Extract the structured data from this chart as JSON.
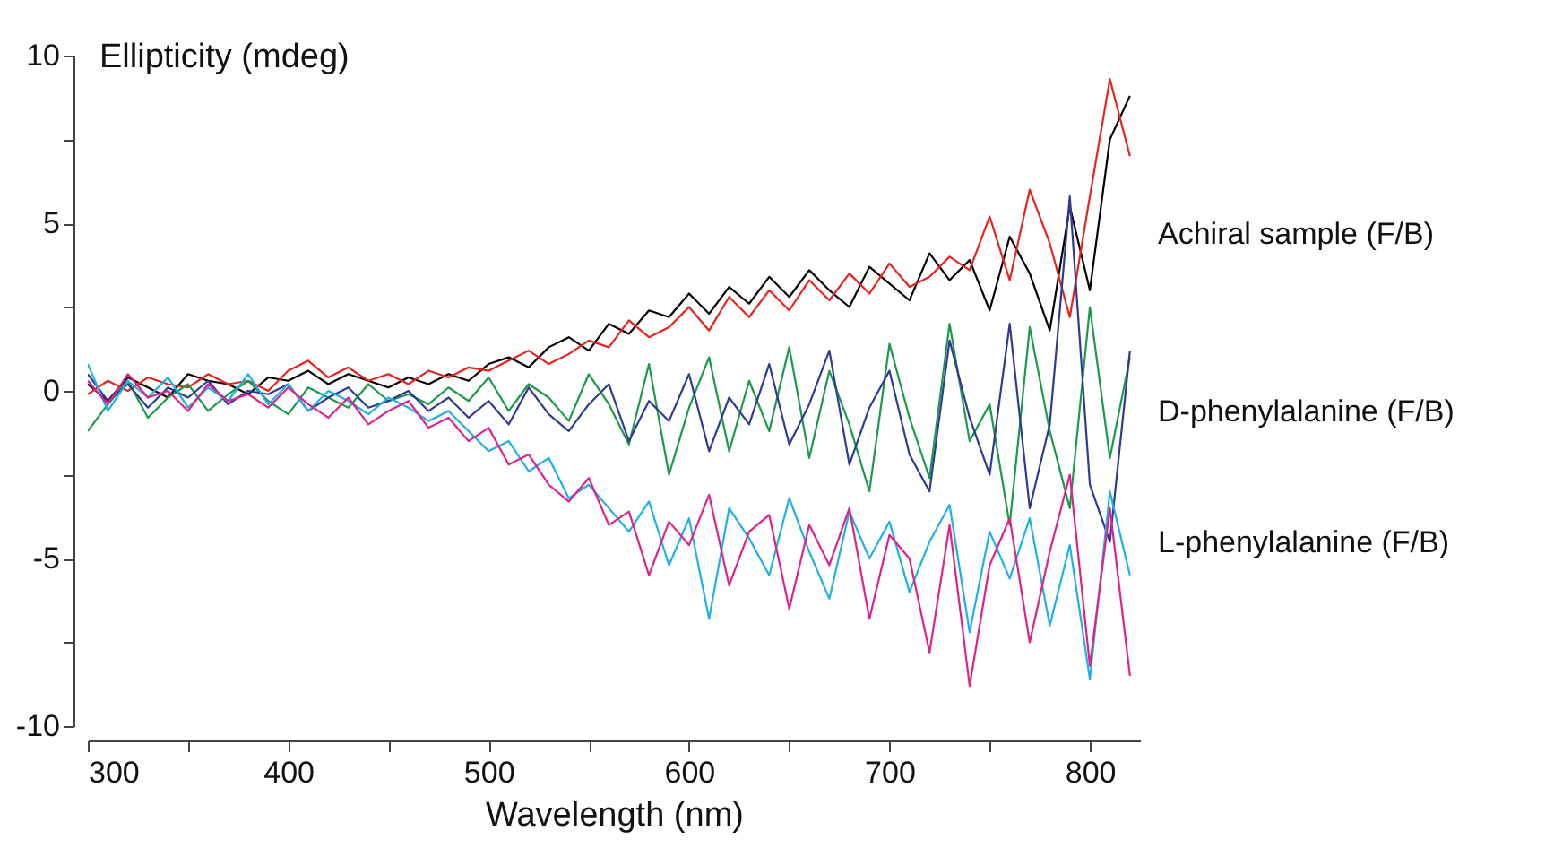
{
  "chart_data": {
    "type": "line",
    "xlabel": "Wavelength (nm)",
    "ylabel": "Ellipticity (mdeg)",
    "x": [
      300,
      310,
      320,
      330,
      340,
      350,
      360,
      370,
      380,
      390,
      400,
      410,
      420,
      430,
      440,
      450,
      460,
      470,
      480,
      490,
      500,
      510,
      520,
      530,
      540,
      550,
      560,
      570,
      580,
      590,
      600,
      610,
      620,
      630,
      640,
      650,
      660,
      670,
      680,
      690,
      700,
      710,
      720,
      730,
      740,
      750,
      760,
      770,
      780,
      790,
      800,
      810,
      820
    ],
    "series": [
      {
        "color": "#000000",
        "values": [
          0.2,
          -0.3,
          0.4,
          0.1,
          -0.2,
          0.5,
          0.3,
          0.2,
          -0.1,
          0.4,
          0.3,
          0.6,
          0.2,
          0.5,
          0.3,
          0.1,
          0.4,
          0.2,
          0.5,
          0.3,
          0.8,
          1.0,
          0.7,
          1.3,
          1.6,
          1.2,
          2.0,
          1.7,
          2.4,
          2.2,
          2.9,
          2.3,
          3.1,
          2.6,
          3.4,
          2.8,
          3.6,
          3.0,
          2.5,
          3.7,
          3.2,
          2.7,
          4.1,
          3.3,
          3.9,
          2.4,
          4.6,
          3.5,
          1.8,
          5.5,
          3.0,
          7.5,
          8.8
        ]
      },
      {
        "color": "#e8231e",
        "values": [
          -0.1,
          0.3,
          0.0,
          0.4,
          0.2,
          0.1,
          0.5,
          0.2,
          0.3,
          0.0,
          0.6,
          0.9,
          0.4,
          0.7,
          0.3,
          0.5,
          0.2,
          0.6,
          0.4,
          0.7,
          0.6,
          0.9,
          1.2,
          0.8,
          1.1,
          1.5,
          1.3,
          2.1,
          1.6,
          1.9,
          2.5,
          1.8,
          2.8,
          2.2,
          3.0,
          2.4,
          3.3,
          2.7,
          3.5,
          2.9,
          3.8,
          3.1,
          3.4,
          4.0,
          3.6,
          5.2,
          3.3,
          6.0,
          4.4,
          2.2,
          5.8,
          9.3,
          7.0
        ]
      },
      {
        "color": "#1a9a4a",
        "values": [
          -1.2,
          -0.4,
          0.3,
          -0.8,
          -0.2,
          0.2,
          -0.6,
          -0.1,
          0.3,
          -0.3,
          -0.7,
          0.1,
          -0.2,
          -0.5,
          0.2,
          -0.3,
          -0.1,
          -0.4,
          0.1,
          -0.3,
          0.4,
          -0.6,
          0.2,
          -0.2,
          -0.9,
          0.5,
          -0.4,
          -1.6,
          0.8,
          -2.5,
          -0.5,
          1.0,
          -1.8,
          0.3,
          -1.2,
          1.3,
          -2.0,
          0.6,
          -1.0,
          -3.0,
          1.4,
          -0.8,
          -2.6,
          2.0,
          -1.5,
          -0.4,
          -4.0,
          1.9,
          -1.2,
          -3.5,
          2.5,
          -2.0,
          1.0
        ]
      },
      {
        "color": "#2e3a94",
        "values": [
          0.5,
          -0.3,
          0.2,
          -0.5,
          0.1,
          -0.2,
          0.3,
          -0.4,
          0.0,
          -0.1,
          0.2,
          -0.6,
          -0.2,
          0.1,
          -0.5,
          -0.3,
          0.0,
          -0.6,
          -0.2,
          -0.8,
          -0.3,
          -1.0,
          0.1,
          -0.7,
          -1.2,
          -0.4,
          0.2,
          -1.5,
          -0.3,
          -0.9,
          0.5,
          -1.8,
          -0.2,
          -1.0,
          0.8,
          -1.6,
          -0.4,
          1.2,
          -2.2,
          -0.5,
          0.6,
          -1.9,
          -3.0,
          1.5,
          -0.8,
          -2.5,
          2.0,
          -3.5,
          -1.0,
          5.8,
          -2.8,
          -4.5,
          1.2
        ]
      },
      {
        "color": "#1fb0e6",
        "values": [
          0.8,
          -0.6,
          0.3,
          -0.2,
          0.4,
          -0.5,
          0.1,
          -0.3,
          0.5,
          -0.4,
          0.2,
          -0.6,
          0.0,
          -0.3,
          -0.7,
          -0.2,
          -0.5,
          -0.9,
          -0.6,
          -1.2,
          -1.8,
          -1.5,
          -2.4,
          -2.0,
          -3.2,
          -2.8,
          -3.5,
          -4.2,
          -3.3,
          -5.2,
          -3.8,
          -6.8,
          -3.5,
          -4.4,
          -5.5,
          -3.2,
          -4.8,
          -6.2,
          -3.6,
          -5.0,
          -3.9,
          -6.0,
          -4.5,
          -3.4,
          -7.2,
          -4.2,
          -5.6,
          -3.8,
          -7.0,
          -4.6,
          -8.6,
          -3.0,
          -5.5
        ]
      },
      {
        "color": "#e0218a",
        "values": [
          0.3,
          -0.4,
          0.5,
          -0.2,
          0.0,
          -0.6,
          0.2,
          -0.3,
          -0.1,
          -0.5,
          0.1,
          -0.4,
          -0.8,
          -0.2,
          -1.0,
          -0.6,
          -0.3,
          -1.1,
          -0.8,
          -1.5,
          -1.1,
          -2.2,
          -1.9,
          -2.8,
          -3.3,
          -2.6,
          -4.0,
          -3.6,
          -5.5,
          -3.9,
          -4.6,
          -3.1,
          -5.8,
          -4.2,
          -3.7,
          -6.5,
          -4.0,
          -5.2,
          -3.5,
          -6.8,
          -4.3,
          -5.0,
          -7.8,
          -4.0,
          -8.8,
          -5.2,
          -3.8,
          -7.5,
          -4.8,
          -2.5,
          -8.2,
          -3.5,
          -8.5
        ]
      }
    ],
    "xlim": [
      300,
      825
    ],
    "xticks": [
      300,
      {
        "value": 350,
        "label": null
      },
      400,
      {
        "value": 450,
        "label": null
      },
      500,
      {
        "value": 550,
        "label": null
      },
      600,
      {
        "value": 650,
        "label": null
      },
      700,
      {
        "value": 750,
        "label": null
      },
      800
    ],
    "ylim": [
      -10,
      10
    ],
    "yticks": [
      -10,
      {
        "value": -7.5,
        "label": null
      },
      -5,
      {
        "value": -2.5,
        "label": null
      },
      0,
      {
        "value": 2.5,
        "label": null
      },
      5,
      {
        "value": 7.5,
        "label": null
      },
      10
    ],
    "annotations": [
      "Achiral sample (F/B)",
      "D-phenylalanine (F/B)",
      "L-phenylalanine (F/B)"
    ],
    "grid": false,
    "legend": false,
    "marker": "none",
    "line_style": "solid"
  }
}
